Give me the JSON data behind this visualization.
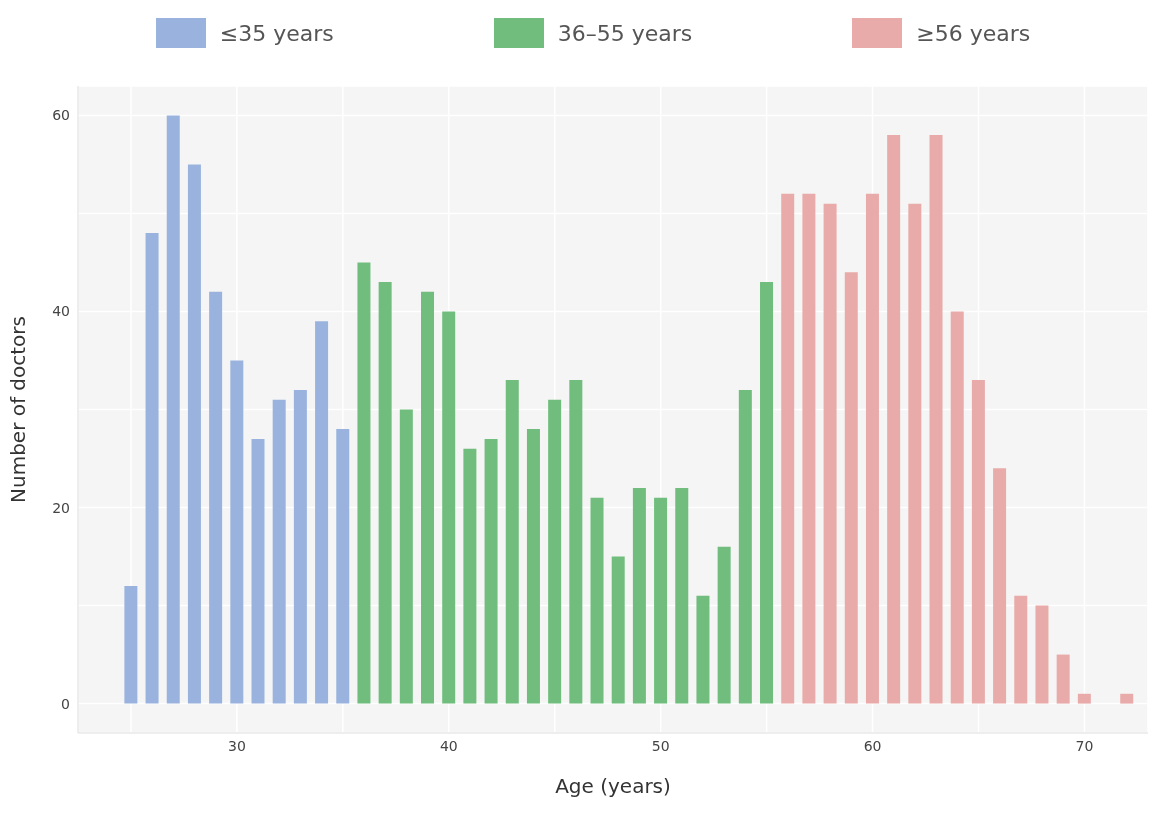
{
  "chart_data": {
    "type": "bar",
    "xlabel": "Age (years)",
    "ylabel": "Number of doctors",
    "series": [
      {
        "name": "≤35 years",
        "color": "#9ab3de",
        "x": [
          25,
          26,
          27,
          28,
          29,
          30,
          31,
          32,
          33,
          34,
          35
        ],
        "values": [
          12,
          48,
          60,
          55,
          42,
          35,
          27,
          31,
          32,
          39,
          28
        ]
      },
      {
        "name": "36–55 years",
        "color": "#70bd7d",
        "x": [
          36,
          37,
          38,
          39,
          40,
          41,
          42,
          43,
          44,
          45,
          46,
          47,
          48,
          49,
          50,
          51,
          52,
          53,
          54,
          55
        ],
        "values": [
          45,
          43,
          30,
          42,
          40,
          26,
          27,
          33,
          28,
          31,
          33,
          21,
          15,
          22,
          21,
          22,
          11,
          16,
          32,
          43
        ]
      },
      {
        "name": "≥56 years",
        "color": "#e9abaa",
        "x": [
          56,
          57,
          58,
          59,
          60,
          61,
          62,
          63,
          64,
          65,
          66,
          67,
          68,
          69,
          70,
          72
        ],
        "values": [
          52,
          52,
          51,
          44,
          52,
          58,
          51,
          58,
          40,
          33,
          24,
          11,
          10,
          5,
          1,
          1
        ]
      }
    ],
    "xlim": [
      22.5,
      73
    ],
    "xticks": [
      {
        "value": 25,
        "label": null
      },
      30,
      {
        "value": 35,
        "label": null
      },
      40,
      {
        "value": 45,
        "label": null
      },
      50,
      {
        "value": 55,
        "label": null
      },
      60,
      {
        "value": 65,
        "label": null
      },
      70
    ],
    "ylim": [
      -3,
      63
    ],
    "yticks": [
      0,
      {
        "value": 10,
        "label": null
      },
      20,
      {
        "value": 30,
        "label": null
      },
      40,
      {
        "value": 50,
        "label": null
      },
      60
    ],
    "grid": true,
    "legend": "top"
  }
}
